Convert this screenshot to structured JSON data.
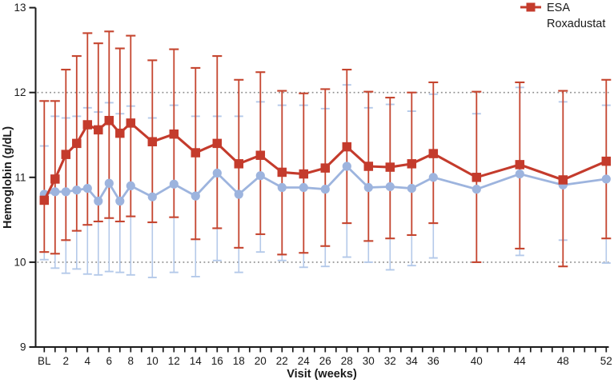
{
  "legend": {
    "esa": "ESA",
    "roxadustat": "Roxadustat"
  },
  "axes": {
    "x_title": "Visit (weeks)",
    "y_title": "Hemoglobin (g/dL)"
  },
  "colors": {
    "esa": "#9db4de",
    "esa_error": "#b4c9e9",
    "roxadustat": "#c43b2c",
    "roxadustat_error": "#c5452f",
    "axis": "#1a1a1a",
    "text": "#1a1a1a",
    "reference_line": "#8c8c8c",
    "background": "#ffffff"
  },
  "chart_data": {
    "type": "line",
    "title": "",
    "xlabel": "Visit (weeks)",
    "ylabel": "Hemoglobin (g/dL)",
    "ylim": [
      9,
      13
    ],
    "yticks": [
      9,
      10,
      11,
      12,
      13
    ],
    "ytick_labels": [
      "9",
      "10",
      "11",
      "12",
      "13"
    ],
    "reference_lines_y": [
      10,
      12
    ],
    "grid": "dotted horizontal reference lines at 10 and 12 only",
    "legend_position": "top-right",
    "x_minor_tick_weeks_range": [
      0,
      52
    ],
    "x_labeled_ticks": {
      "weeks": [
        0,
        2,
        4,
        6,
        8,
        10,
        12,
        14,
        16,
        18,
        20,
        22,
        24,
        26,
        28,
        30,
        32,
        34,
        36,
        40,
        44,
        48,
        52
      ],
      "labels": [
        "BL",
        "2",
        "4",
        "6",
        "8",
        "10",
        "12",
        "14",
        "16",
        "18",
        "20",
        "22",
        "24",
        "26",
        "28",
        "30",
        "32",
        "34",
        "36",
        "40",
        "44",
        "48",
        "52"
      ]
    },
    "x_weeks": [
      0,
      1,
      2,
      3,
      4,
      5,
      6,
      7,
      8,
      10,
      12,
      14,
      16,
      18,
      20,
      22,
      24,
      26,
      28,
      30,
      32,
      34,
      36,
      40,
      44,
      48,
      52
    ],
    "series": [
      {
        "name": "ESA",
        "marker": "circle",
        "means": [
          10.8,
          10.83,
          10.83,
          10.85,
          10.87,
          10.72,
          10.93,
          10.72,
          10.9,
          10.77,
          10.92,
          10.78,
          11.05,
          10.8,
          11.02,
          10.88,
          10.88,
          10.86,
          11.13,
          10.88,
          10.89,
          10.87,
          11.0,
          10.86,
          11.04,
          10.91,
          10.98
        ],
        "lower": [
          10.03,
          9.93,
          9.87,
          9.92,
          9.86,
          9.85,
          9.89,
          9.88,
          9.85,
          9.82,
          9.88,
          9.83,
          10.02,
          9.88,
          10.12,
          10.02,
          9.94,
          9.95,
          10.06,
          10.0,
          9.91,
          9.96,
          10.05,
          10.0,
          10.08,
          10.26,
          9.99
        ],
        "upper": [
          11.37,
          11.72,
          11.7,
          11.72,
          11.82,
          11.77,
          11.88,
          11.75,
          11.84,
          11.7,
          11.85,
          11.72,
          11.72,
          11.72,
          11.89,
          11.85,
          11.85,
          11.81,
          12.09,
          11.82,
          11.86,
          11.78,
          11.98,
          11.75,
          12.06,
          11.89,
          11.85
        ]
      },
      {
        "name": "Roxadustat",
        "marker": "square",
        "means": [
          10.73,
          10.98,
          11.27,
          11.4,
          11.62,
          11.56,
          11.67,
          11.52,
          11.64,
          11.42,
          11.51,
          11.29,
          11.4,
          11.16,
          11.26,
          11.06,
          11.04,
          11.11,
          11.36,
          11.13,
          11.12,
          11.16,
          11.28,
          11.0,
          11.15,
          10.97,
          11.19
        ],
        "lower": [
          10.12,
          10.1,
          10.26,
          10.37,
          10.44,
          10.48,
          10.52,
          10.48,
          10.54,
          10.47,
          10.53,
          10.27,
          10.4,
          10.17,
          10.33,
          10.09,
          10.11,
          10.19,
          10.46,
          10.25,
          10.28,
          10.32,
          10.46,
          10.0,
          10.16,
          9.95,
          10.28
        ],
        "upper": [
          11.9,
          11.9,
          12.27,
          12.43,
          12.7,
          12.58,
          12.72,
          12.52,
          12.67,
          12.38,
          12.51,
          12.29,
          12.43,
          12.15,
          12.24,
          12.02,
          11.99,
          12.04,
          12.27,
          12.01,
          11.94,
          12.0,
          12.12,
          12.01,
          12.12,
          12.02,
          12.15
        ]
      }
    ]
  }
}
